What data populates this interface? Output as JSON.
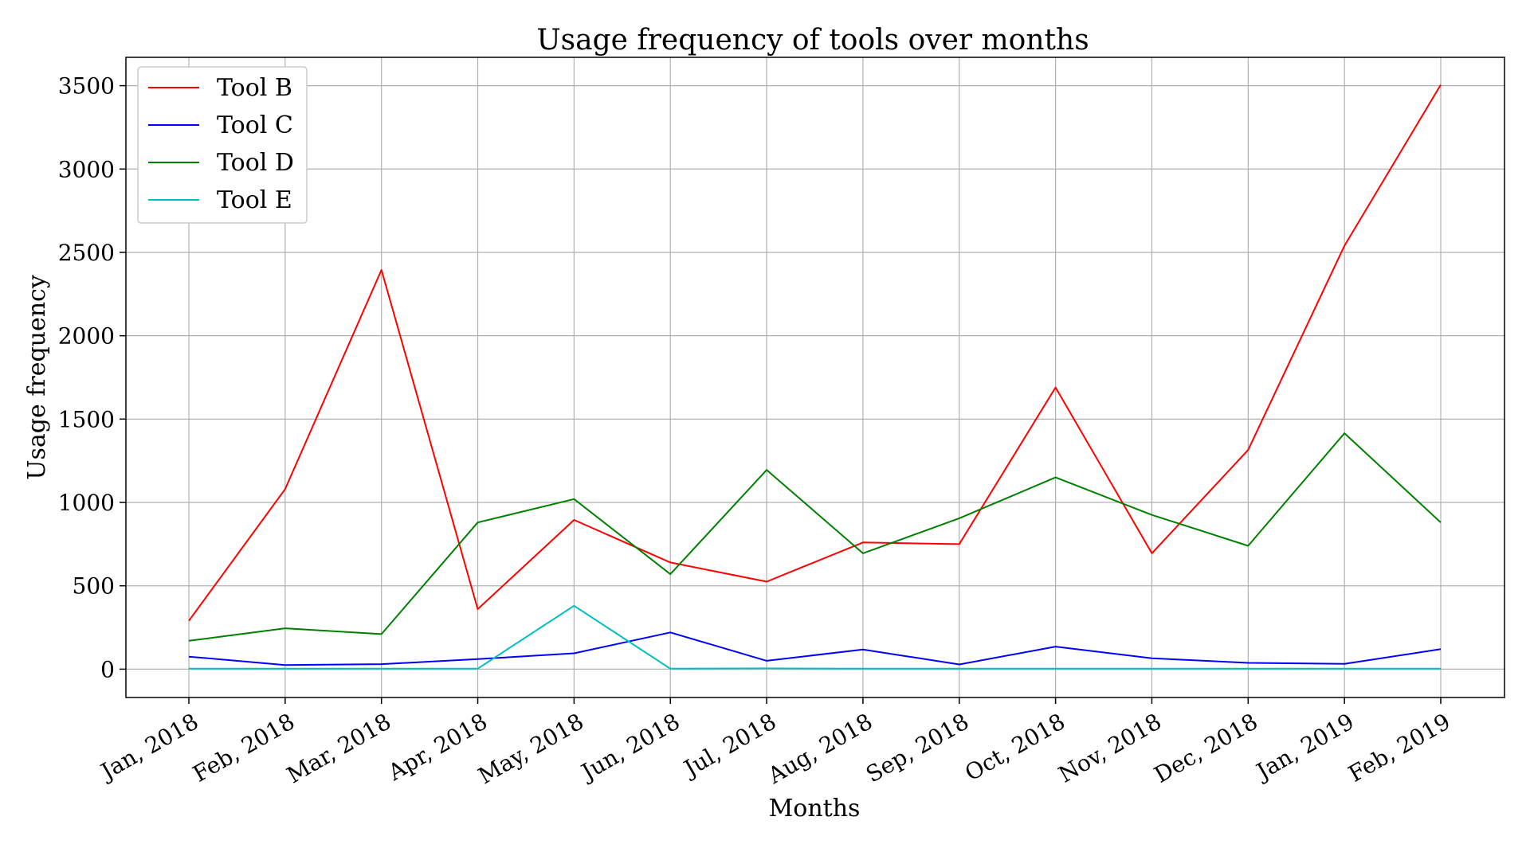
{
  "chart_data": {
    "type": "line",
    "title": "Usage frequency of tools over months",
    "xlabel": "Months",
    "ylabel": "Usage frequency",
    "categories": [
      "Jan, 2018",
      "Feb, 2018",
      "Mar, 2018",
      "Apr, 2018",
      "May, 2018",
      "Jun, 2018",
      "Jul, 2018",
      "Aug, 2018",
      "Sep, 2018",
      "Oct, 2018",
      "Nov, 2018",
      "Dec, 2018",
      "Jan, 2019",
      "Feb, 2019"
    ],
    "ylim": [
      -170,
      3670
    ],
    "yticks": [
      0,
      500,
      1000,
      1500,
      2000,
      2500,
      3000,
      3500
    ],
    "grid": true,
    "legend_position": "top-left",
    "series": [
      {
        "name": "Tool B",
        "color": "#ff0000",
        "values": [
          290,
          1080,
          2395,
          360,
          895,
          640,
          525,
          760,
          750,
          1690,
          695,
          1315,
          2540,
          3505
        ]
      },
      {
        "name": "Tool C",
        "color": "#0000ff",
        "values": [
          75,
          25,
          30,
          60,
          95,
          220,
          50,
          118,
          28,
          135,
          65,
          38,
          32,
          120
        ]
      },
      {
        "name": "Tool D",
        "color": "#008000",
        "values": [
          170,
          245,
          210,
          880,
          1020,
          570,
          1195,
          695,
          905,
          1150,
          925,
          740,
          1415,
          880
        ]
      },
      {
        "name": "Tool E",
        "color": "#00bfbf",
        "values": [
          3,
          3,
          3,
          3,
          380,
          3,
          5,
          3,
          3,
          3,
          3,
          3,
          3,
          3
        ]
      }
    ]
  }
}
